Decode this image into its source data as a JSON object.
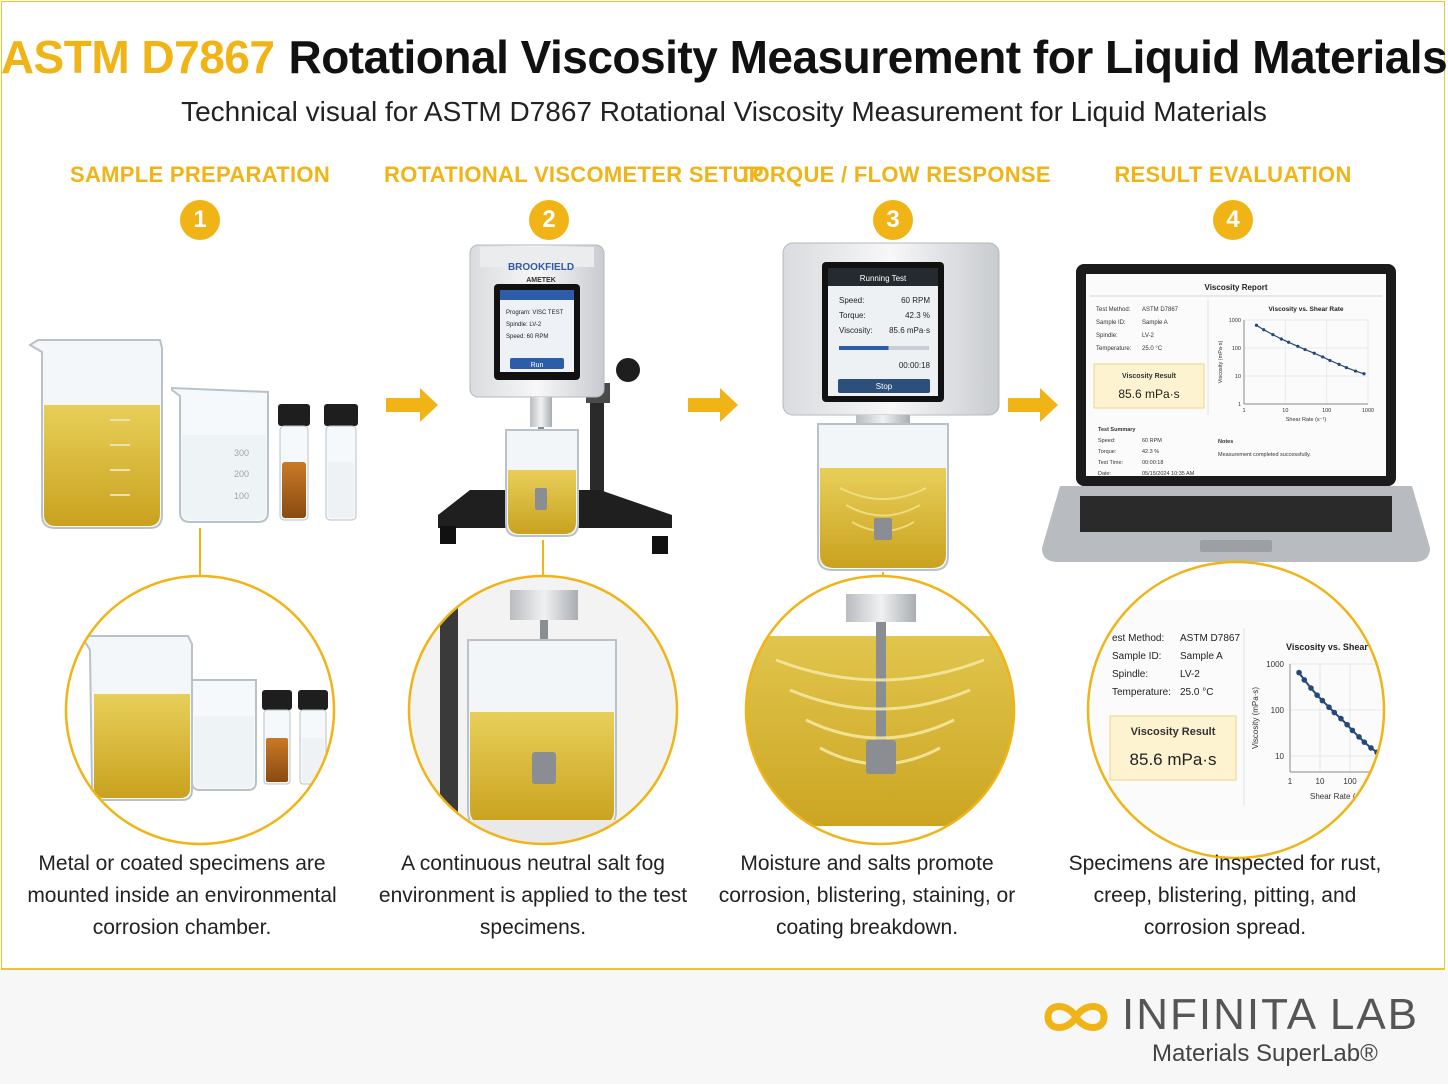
{
  "title": {
    "code": "ASTM D7867",
    "main": "Rotational Viscosity Measurement for Liquid Materials"
  },
  "subtitle": "Technical visual for ASTM D7867 Rotational Viscosity Measurement for Liquid Materials",
  "steps": [
    {
      "number": "1",
      "heading": "SAMPLE PREPARATION",
      "caption": "Metal or coated specimens are mounted inside an environmental corrosion chamber."
    },
    {
      "number": "2",
      "heading": "ROTATIONAL VISCOMETER SETUP",
      "caption": "A continuous neutral salt fog environment is applied to the test specimens."
    },
    {
      "number": "3",
      "heading": "TORQUE / FLOW RESPONSE",
      "caption": "Moisture and salts promote corrosion, blistering, staining, or coating breakdown."
    },
    {
      "number": "4",
      "heading": "RESULT EVALUATION",
      "caption": "Specimens are inspected for rust, creep, blistering, pitting, and corrosion spread."
    }
  ],
  "beaker_marks": [
    "300",
    "200",
    "100"
  ],
  "viscometer": {
    "brand": "BROOKFIELD",
    "maker": "AMETEK",
    "program": "Program: VISC TEST",
    "spindle": "Spindle: LV-2",
    "speed": "Speed: 60 RPM",
    "run_button": "Run"
  },
  "running_test": {
    "header": "Running Test",
    "speed_label": "Speed:",
    "speed_value": "60 RPM",
    "torque_label": "Torque:",
    "torque_value": "42.3 %",
    "viscosity_label": "Viscosity:",
    "viscosity_value": "85.6 mPa·s",
    "progress": 0.55,
    "elapsed": "00:00:18",
    "stop_button": "Stop"
  },
  "report": {
    "title": "Viscosity Report",
    "fields": [
      {
        "label": "Test Method:",
        "value": "ASTM D7867"
      },
      {
        "label": "Sample ID:",
        "value": "Sample A"
      },
      {
        "label": "Spindle:",
        "value": "LV-2"
      },
      {
        "label": "Temperature:",
        "value": "25.0 °C"
      }
    ],
    "result_label": "Viscosity Result",
    "result_value": "85.6 mPa·s",
    "summary_title": "Test Summary",
    "summary": [
      {
        "label": "Speed:",
        "value": "60 RPM"
      },
      {
        "label": "Torque:",
        "value": "42.3 %"
      },
      {
        "label": "Test Time:",
        "value": "00:00:18"
      },
      {
        "label": "Date:",
        "value": "05/15/2024 10:35 AM"
      }
    ],
    "notes_title": "Notes",
    "notes": "Measurement completed successfully."
  },
  "chart_data": {
    "type": "line",
    "title": "Viscosity vs. Shear Rate",
    "xlabel": "Shear Rate (s⁻¹)",
    "ylabel": "Viscosity (mPa·s)",
    "x_scale": "log",
    "y_scale": "log",
    "xlim": [
      1,
      1000
    ],
    "ylim": [
      1,
      1000
    ],
    "x_ticks": [
      "1",
      "10",
      "100",
      "1000"
    ],
    "y_ticks": [
      "1",
      "10",
      "100",
      "1000"
    ],
    "grid": true,
    "series": [
      {
        "x": [
          2,
          3,
          5,
          8,
          12,
          20,
          30,
          50,
          80,
          120,
          200,
          300,
          500,
          800
        ],
        "y": [
          650,
          450,
          300,
          210,
          160,
          115,
          88,
          65,
          48,
          36,
          26,
          20,
          15,
          12
        ]
      }
    ]
  },
  "zoom_report": {
    "fields": [
      {
        "label": "est Method:",
        "value": "ASTM D7867"
      },
      {
        "label": "Sample ID:",
        "value": "Sample A"
      },
      {
        "label": "Spindle:",
        "value": "LV-2"
      },
      {
        "label": "Temperature:",
        "value": "25.0 °C"
      }
    ],
    "chart_title": "Viscosity vs. Shear",
    "y_ticks": [
      "1000",
      "100",
      "10"
    ],
    "x_ticks": [
      "1",
      "10",
      "100"
    ],
    "ylabel": "Viscosity (mPa·s)",
    "xlabel": "Shear Rate ("
  },
  "logo": {
    "word": "INFINITA LAB",
    "tagline": "Materials SuperLab®"
  },
  "colors": {
    "accent": "#f0b416",
    "liquid": "#d9b62c",
    "amber": "#b5651d",
    "frame": "#f1c232"
  }
}
